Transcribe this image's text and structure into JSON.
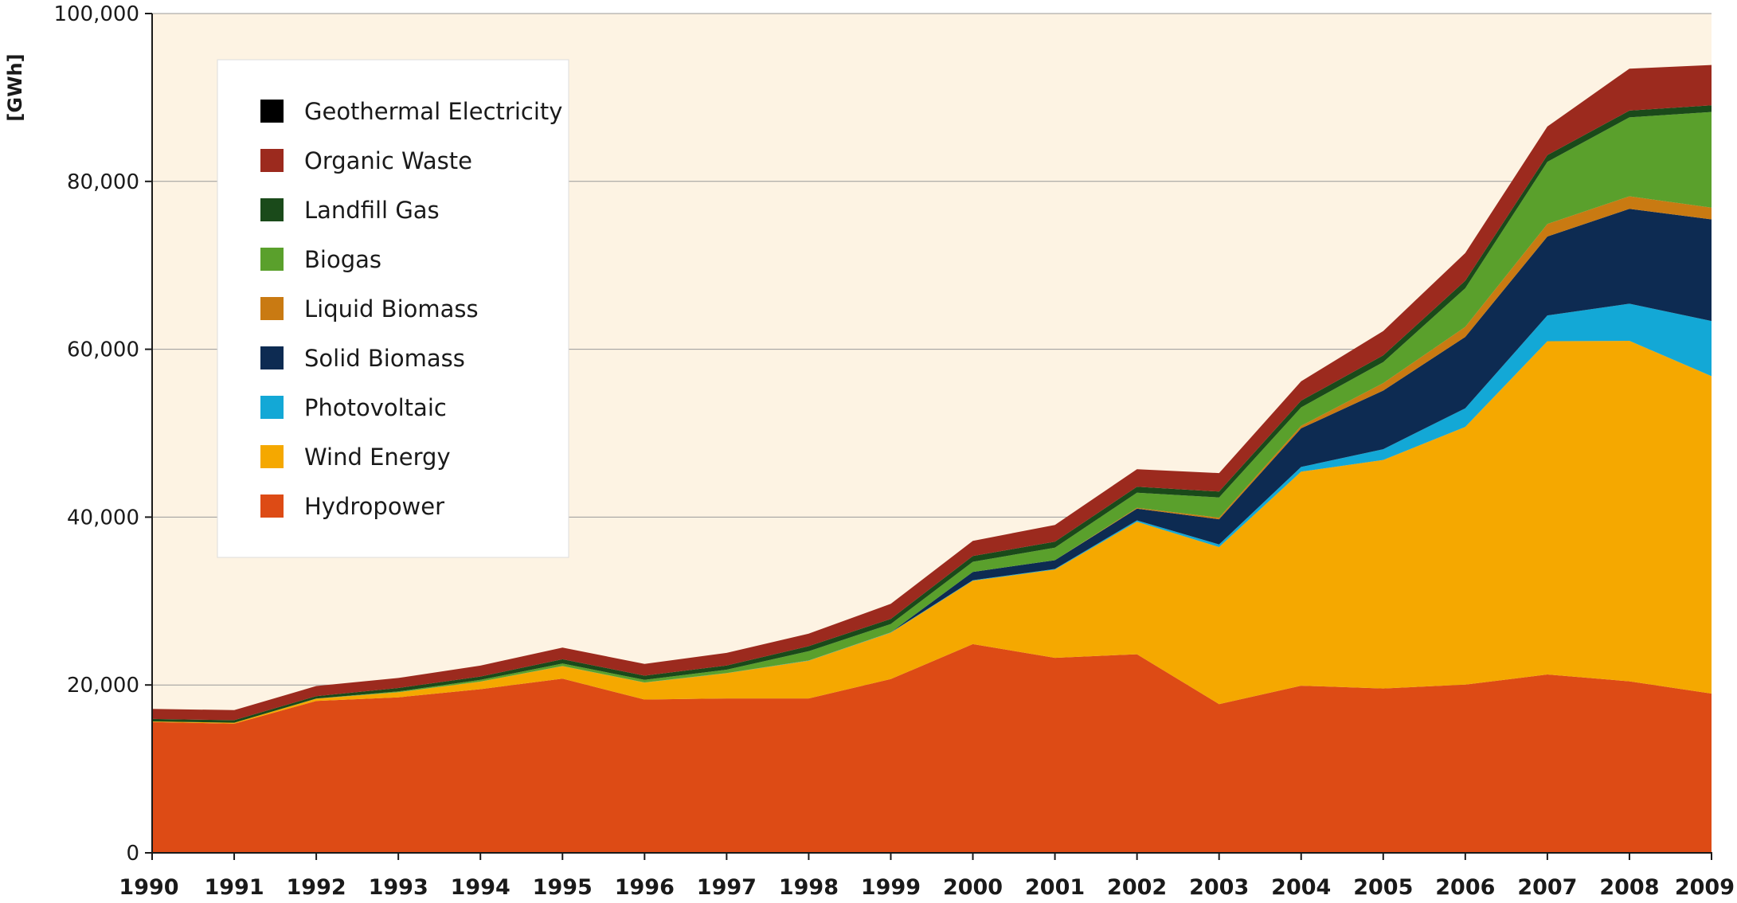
{
  "chart_data": {
    "type": "area",
    "stacked": true,
    "title": "",
    "xlabel": "",
    "ylabel": "[GWh]",
    "ylim": [
      0,
      100000
    ],
    "y_ticks": [
      0,
      20000,
      40000,
      60000,
      80000,
      100000
    ],
    "y_tick_labels": [
      "0",
      "20,000",
      "40,000",
      "60,000",
      "80,000",
      "100,000"
    ],
    "grid": true,
    "legend_position": "top-left",
    "background_color": "#fdf3e3",
    "x": [
      "1990",
      "1991",
      "1992",
      "1993",
      "1994",
      "1995",
      "1996",
      "1997",
      "1998",
      "1999",
      "2000",
      "2001",
      "2002",
      "2003",
      "2004",
      "2005",
      "2006",
      "2007",
      "2008",
      "2009"
    ],
    "series": [
      {
        "name": "Hydropower",
        "color": "#dd4b15",
        "values": [
          15580,
          15400,
          18090,
          18530,
          19500,
          20750,
          18260,
          18400,
          18400,
          20700,
          24870,
          23240,
          23660,
          17720,
          19910,
          19580,
          20040,
          21250,
          20440,
          18980
        ]
      },
      {
        "name": "Wind Energy",
        "color": "#f5a800",
        "values": [
          70,
          100,
          280,
          600,
          900,
          1500,
          2030,
          3000,
          4490,
          5530,
          7550,
          10510,
          15790,
          18710,
          25510,
          27230,
          30710,
          39710,
          40570,
          37810
        ]
      },
      {
        "name": "Photovoltaic",
        "color": "#13a8d6",
        "values": [
          1,
          2,
          3,
          6,
          8,
          11,
          16,
          26,
          32,
          42,
          64,
          76,
          162,
          313,
          556,
          1282,
          2220,
          3075,
          4420,
          6580
        ]
      },
      {
        "name": "Solid Biomass",
        "color": "#0d2b52",
        "values": [
          0,
          0,
          0,
          0,
          0,
          0,
          0,
          0,
          0,
          0,
          990,
          1040,
          1400,
          3000,
          4600,
          6980,
          8500,
          9400,
          11300,
          12100
        ]
      },
      {
        "name": "Liquid Biomass",
        "color": "#c97a12",
        "values": [
          0,
          0,
          0,
          0,
          0,
          0,
          0,
          0,
          0,
          0,
          0,
          0,
          100,
          200,
          300,
          900,
          1200,
          1500,
          1500,
          1400
        ]
      },
      {
        "name": "Biogas",
        "color": "#5aa02c",
        "values": [
          0,
          0,
          0,
          100,
          200,
          300,
          300,
          400,
          1100,
          1000,
          1200,
          1500,
          1800,
          2400,
          2200,
          2500,
          4600,
          7400,
          9400,
          11400
        ]
      },
      {
        "name": "Landfill Gas",
        "color": "#1a4a1a",
        "values": [
          300,
          300,
          300,
          400,
          400,
          500,
          500,
          500,
          600,
          600,
          700,
          700,
          700,
          700,
          800,
          800,
          900,
          800,
          800,
          800
        ]
      },
      {
        "name": "Organic Waste",
        "color": "#9c2a1e",
        "values": [
          1200,
          1200,
          1200,
          1200,
          1300,
          1400,
          1400,
          1500,
          1500,
          1800,
          1800,
          2000,
          2100,
          2200,
          2300,
          2900,
          3300,
          3400,
          5000,
          4800
        ]
      },
      {
        "name": "Geothermal Electricity",
        "color": "#000000",
        "values": [
          0,
          0,
          0,
          0,
          0,
          0,
          0,
          0,
          0,
          0,
          0,
          0,
          0,
          0,
          0,
          1,
          1,
          1,
          1,
          1
        ]
      }
    ]
  }
}
